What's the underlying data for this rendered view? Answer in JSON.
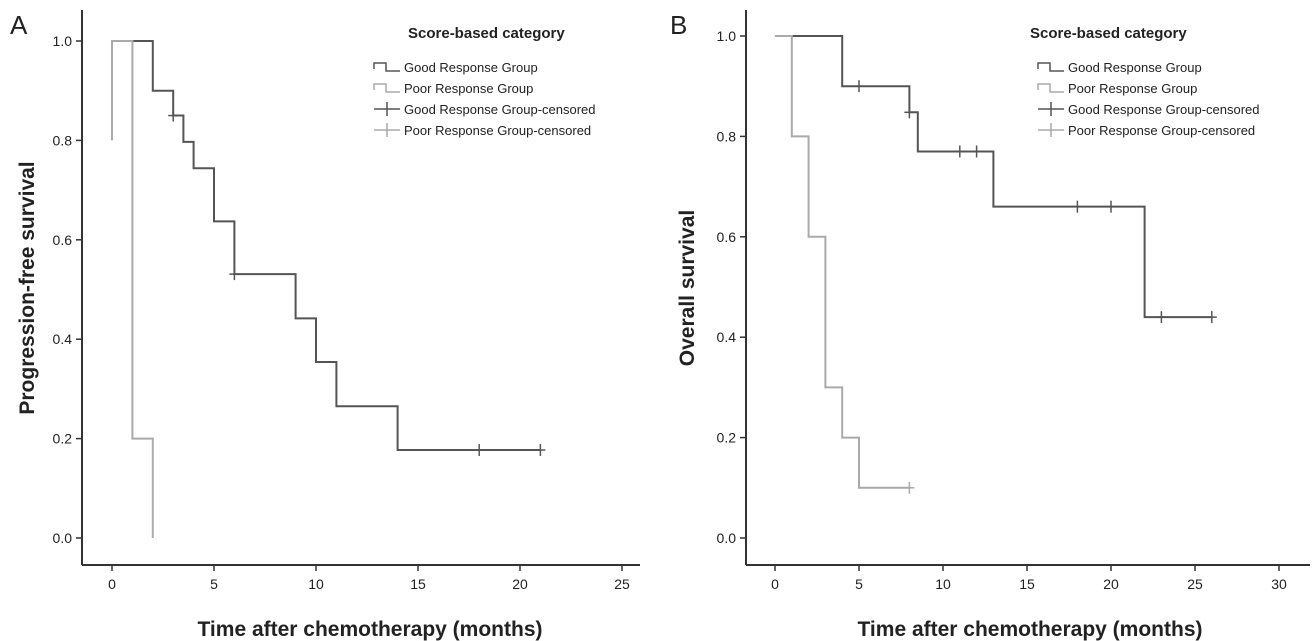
{
  "chart_data": [
    {
      "panel": "A",
      "type": "line",
      "step": true,
      "xlabel": "Time after chemotherapy (months)",
      "ylabel": "Progression-free survival",
      "xlim": [
        0,
        25
      ],
      "ylim": [
        0,
        1.0
      ],
      "xticks": [
        "0",
        "5",
        "10",
        "15",
        "20",
        "25"
      ],
      "yticks": [
        "0.0",
        "0.2",
        "0.4",
        "0.6",
        "0.8",
        "1.0"
      ],
      "legend_title": "Score-based category",
      "legend": [
        "Good Response Group",
        "Poor Response Group",
        "Good Response Group-censored",
        "Poor Response Group-censored"
      ],
      "grid": false,
      "series": [
        {
          "name": "Good Response Group",
          "color": "#555555",
          "steps": [
            [
              0,
              1.0
            ],
            [
              2,
              0.9
            ],
            [
              3,
              0.85
            ],
            [
              3.5,
              0.797
            ],
            [
              4,
              0.744
            ],
            [
              5,
              0.637
            ],
            [
              6,
              0.531
            ],
            [
              9,
              0.442
            ],
            [
              10,
              0.354
            ],
            [
              11,
              0.265
            ],
            [
              14,
              0.177
            ],
            [
              21,
              0.177
            ]
          ],
          "censored": [
            [
              3,
              0.85
            ],
            [
              6,
              0.531
            ],
            [
              18,
              0.177
            ],
            [
              21,
              0.177
            ]
          ]
        },
        {
          "name": "Poor Response Group",
          "color": "#aaaaaa",
          "steps": [
            [
              0,
              0.8
            ],
            [
              0,
              1.0
            ],
            [
              1,
              0.2
            ],
            [
              2,
              0.0
            ]
          ],
          "censored": []
        }
      ]
    },
    {
      "panel": "B",
      "type": "line",
      "step": true,
      "xlabel": "Time after chemotherapy (months)",
      "ylabel": "Overall survival",
      "xlim": [
        0,
        30
      ],
      "ylim": [
        0,
        1.0
      ],
      "xticks": [
        "0",
        "5",
        "10",
        "15",
        "20",
        "25",
        "30"
      ],
      "yticks": [
        "0.0",
        "0.2",
        "0.4",
        "0.6",
        "0.8",
        "1.0"
      ],
      "legend_title": "Score-based category",
      "legend": [
        "Good Response Group",
        "Poor Response Group",
        "Good Response Group-censored",
        "Poor Response Group-censored"
      ],
      "grid": false,
      "series": [
        {
          "name": "Good Response Group",
          "color": "#555555",
          "steps": [
            [
              0,
              1.0
            ],
            [
              4,
              0.9
            ],
            [
              8,
              0.848
            ],
            [
              8.5,
              0.77
            ],
            [
              13,
              0.66
            ],
            [
              22,
              0.44
            ],
            [
              26,
              0.44
            ]
          ],
          "censored": [
            [
              5,
              0.9
            ],
            [
              8,
              0.848
            ],
            [
              11,
              0.77
            ],
            [
              12,
              0.77
            ],
            [
              18,
              0.66
            ],
            [
              20,
              0.66
            ],
            [
              23,
              0.44
            ],
            [
              26,
              0.44
            ]
          ]
        },
        {
          "name": "Poor Response Group",
          "color": "#aaaaaa",
          "steps": [
            [
              0,
              1.0
            ],
            [
              1,
              0.8
            ],
            [
              2,
              0.6
            ],
            [
              3,
              0.3
            ],
            [
              4,
              0.2
            ],
            [
              5,
              0.1
            ],
            [
              8,
              0.1
            ]
          ],
          "censored": [
            [
              8,
              0.1
            ]
          ]
        }
      ]
    }
  ]
}
